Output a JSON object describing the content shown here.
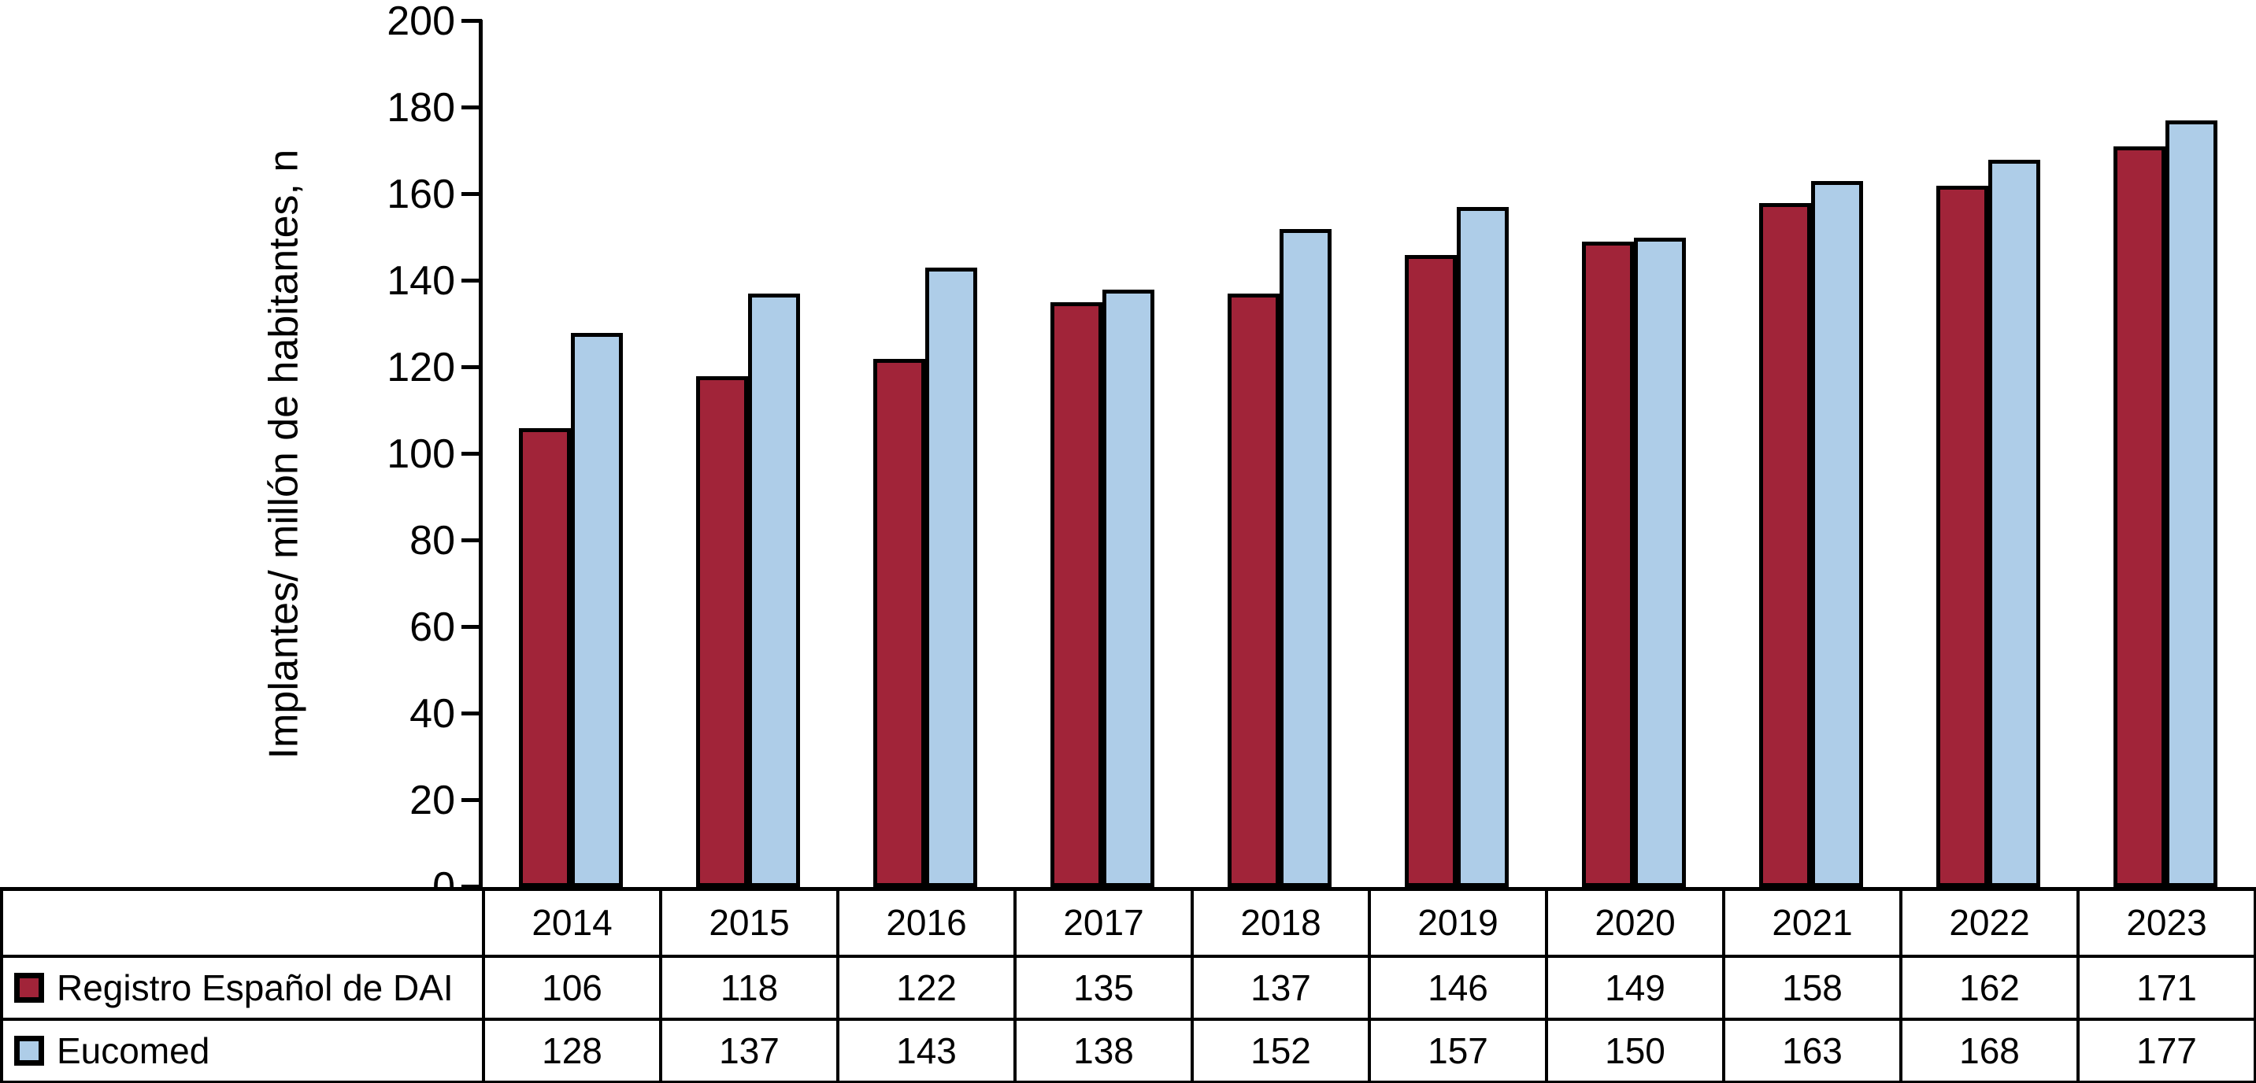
{
  "chart_data": {
    "type": "bar",
    "title": "",
    "xlabel": "",
    "ylabel": "Implantes/ millón de habitantes, n",
    "categories": [
      "2014",
      "2015",
      "2016",
      "2017",
      "2018",
      "2019",
      "2020",
      "2021",
      "2022",
      "2023"
    ],
    "series": [
      {
        "name": "Registro Español de DAI",
        "color": "#A12439",
        "values": [
          106,
          118,
          122,
          135,
          137,
          146,
          149,
          158,
          162,
          171
        ]
      },
      {
        "name": "Eucomed",
        "color": "#AECDE8",
        "values": [
          128,
          137,
          143,
          138,
          152,
          157,
          150,
          163,
          168,
          177
        ]
      }
    ],
    "ylim": [
      0,
      200
    ],
    "yticks": [
      0,
      20,
      40,
      60,
      80,
      100,
      120,
      140,
      160,
      180,
      200
    ],
    "grid": false,
    "legend_position": "table-rows-left",
    "bar_outline_color": "#000000",
    "axis_color": "#000000",
    "background_color": "#FFFFFF"
  }
}
